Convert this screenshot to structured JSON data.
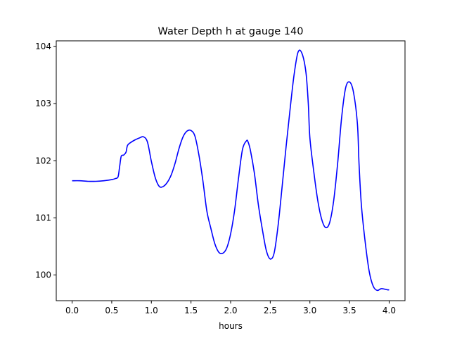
{
  "chart_data": {
    "type": "line",
    "title": "Water Depth h at gauge 140",
    "xlabel": "hours",
    "ylabel": "",
    "xlim": [
      -0.2,
      4.2
    ],
    "ylim": [
      99.55,
      104.1
    ],
    "xticks": [
      0.0,
      0.5,
      1.0,
      1.5,
      2.0,
      2.5,
      3.0,
      3.5,
      4.0
    ],
    "xtick_labels": [
      "0.0",
      "0.5",
      "1.0",
      "1.5",
      "2.0",
      "2.5",
      "3.0",
      "3.5",
      "4.0"
    ],
    "yticks": [
      100,
      101,
      102,
      103,
      104
    ],
    "ytick_labels": [
      "100",
      "101",
      "102",
      "103",
      "104"
    ],
    "grid": false,
    "series": [
      {
        "color": "#0000ff",
        "x": [
          0.0,
          0.1,
          0.2,
          0.3,
          0.4,
          0.5,
          0.55,
          0.58,
          0.6,
          0.62,
          0.65,
          0.68,
          0.7,
          0.75,
          0.8,
          0.85,
          0.9,
          0.95,
          1.0,
          1.05,
          1.1,
          1.15,
          1.2,
          1.25,
          1.3,
          1.35,
          1.4,
          1.45,
          1.5,
          1.55,
          1.6,
          1.65,
          1.7,
          1.75,
          1.8,
          1.85,
          1.9,
          1.95,
          2.0,
          2.05,
          2.1,
          2.15,
          2.2,
          2.22,
          2.25,
          2.3,
          2.35,
          2.4,
          2.45,
          2.5,
          2.55,
          2.6,
          2.65,
          2.7,
          2.75,
          2.8,
          2.85,
          2.9,
          2.95,
          2.98,
          3.0,
          3.05,
          3.1,
          3.15,
          3.2,
          3.25,
          3.3,
          3.35,
          3.4,
          3.45,
          3.5,
          3.55,
          3.6,
          3.62,
          3.65,
          3.7,
          3.75,
          3.8,
          3.85,
          3.9,
          3.95,
          3.98,
          4.0
        ],
        "y": [
          101.65,
          101.65,
          101.64,
          101.64,
          101.65,
          101.67,
          101.69,
          101.72,
          101.9,
          102.08,
          102.1,
          102.15,
          102.27,
          102.33,
          102.37,
          102.4,
          102.42,
          102.33,
          101.99,
          101.7,
          101.55,
          101.55,
          101.62,
          101.75,
          101.96,
          102.22,
          102.42,
          102.52,
          102.53,
          102.43,
          102.1,
          101.65,
          101.12,
          100.82,
          100.55,
          100.4,
          100.38,
          100.47,
          100.72,
          101.13,
          101.7,
          102.2,
          102.35,
          102.33,
          102.18,
          101.78,
          101.23,
          100.8,
          100.43,
          100.28,
          100.39,
          100.88,
          101.55,
          102.25,
          102.9,
          103.5,
          103.9,
          103.88,
          103.55,
          103.0,
          102.4,
          101.8,
          101.3,
          100.97,
          100.83,
          100.92,
          101.3,
          101.95,
          102.75,
          103.27,
          103.38,
          103.2,
          102.64,
          101.95,
          101.22,
          100.55,
          100.05,
          99.8,
          99.73,
          99.76,
          99.75,
          99.74,
          99.74
        ]
      }
    ]
  }
}
